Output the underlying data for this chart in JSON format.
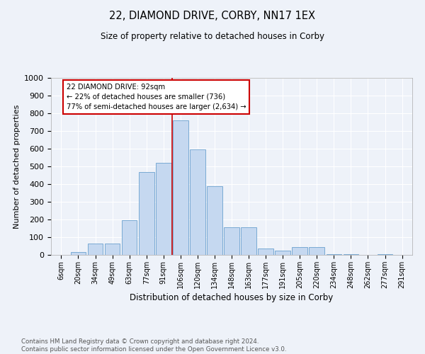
{
  "title": "22, DIAMOND DRIVE, CORBY, NN17 1EX",
  "subtitle": "Size of property relative to detached houses in Corby",
  "xlabel": "Distribution of detached houses by size in Corby",
  "ylabel": "Number of detached properties",
  "categories": [
    "6sqm",
    "20sqm",
    "34sqm",
    "49sqm",
    "63sqm",
    "77sqm",
    "91sqm",
    "106sqm",
    "120sqm",
    "134sqm",
    "148sqm",
    "163sqm",
    "177sqm",
    "191sqm",
    "205sqm",
    "220sqm",
    "234sqm",
    "248sqm",
    "262sqm",
    "277sqm",
    "291sqm"
  ],
  "values": [
    0,
    15,
    65,
    65,
    195,
    470,
    520,
    760,
    595,
    390,
    155,
    155,
    35,
    25,
    45,
    45,
    5,
    5,
    0,
    5,
    0
  ],
  "bar_color": "#c5d8f0",
  "bar_edge_color": "#7aaad4",
  "vline_x_index": 6,
  "vline_color": "#cc0000",
  "annotation_text": "22 DIAMOND DRIVE: 92sqm\n← 22% of detached houses are smaller (736)\n77% of semi-detached houses are larger (2,634) →",
  "annotation_box_color": "#ffffff",
  "annotation_box_edge": "#cc0000",
  "ylim": [
    0,
    1000
  ],
  "yticks": [
    0,
    100,
    200,
    300,
    400,
    500,
    600,
    700,
    800,
    900,
    1000
  ],
  "footnote": "Contains HM Land Registry data © Crown copyright and database right 2024.\nContains public sector information licensed under the Open Government Licence v3.0.",
  "bg_color": "#eef2f9",
  "plot_bg_color": "#eef2f9",
  "grid_color": "#ffffff"
}
